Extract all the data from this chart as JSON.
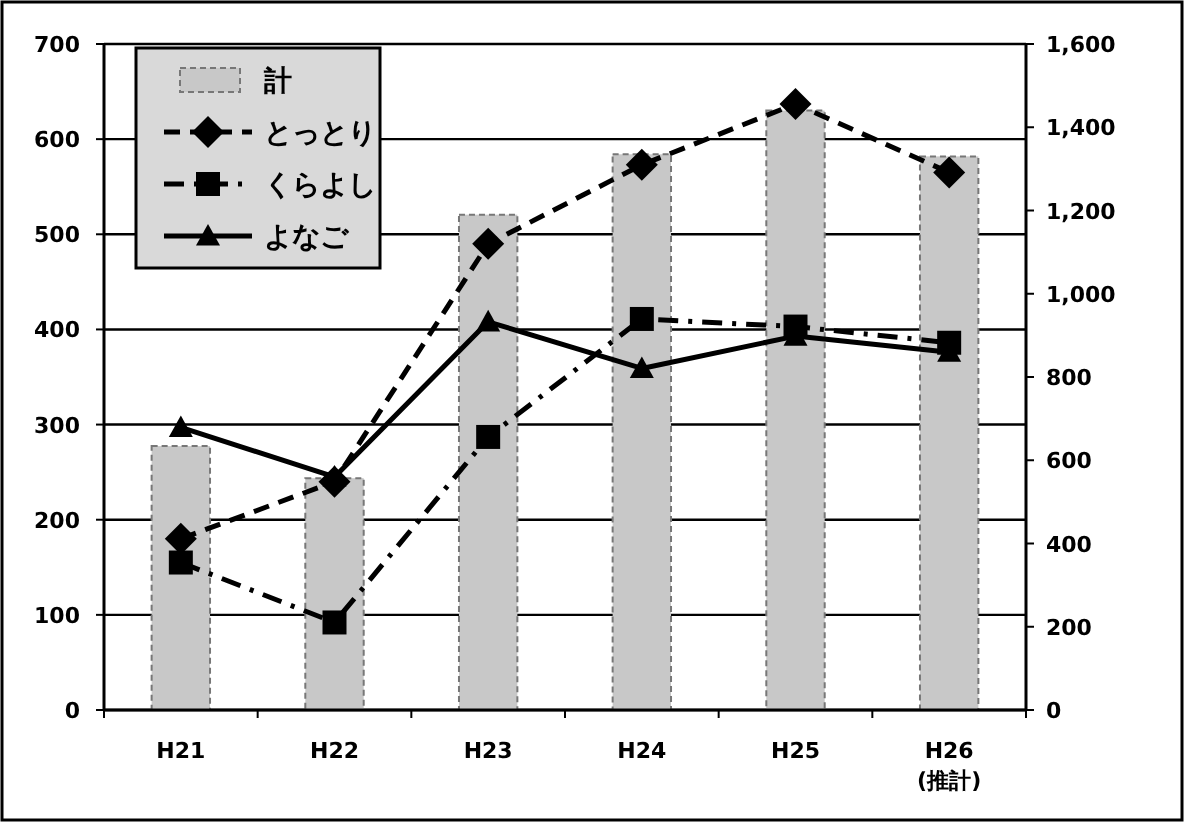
{
  "chart_data": {
    "type": "line",
    "categories": [
      "H21",
      "H22",
      "H23",
      "H24",
      "H25",
      "H26\n(推計)"
    ],
    "series": [
      {
        "name": "計",
        "type": "bar",
        "axis": "y2",
        "color": "#c8c8c8",
        "values": [
          634,
          557,
          1190,
          1335,
          1440,
          1330
        ]
      },
      {
        "name": "とっとり",
        "color": "#000000",
        "marker": "diamond",
        "line_style": "dashed",
        "values": [
          180,
          240,
          490,
          573,
          637,
          565
        ]
      },
      {
        "name": "くらよし",
        "color": "#000000",
        "marker": "square",
        "line_style": "dashdot",
        "values": [
          155,
          92,
          287,
          411,
          403,
          386
        ]
      },
      {
        "name": "よなご",
        "color": "#000000",
        "marker": "triangle",
        "line_style": "solid",
        "values": [
          297,
          245,
          408,
          359,
          393,
          376
        ]
      }
    ],
    "ylim": [
      0,
      700
    ],
    "yticks": [
      0,
      100,
      200,
      300,
      400,
      500,
      600,
      700
    ],
    "y2lim": [
      0,
      1600
    ],
    "y2ticks": [
      {
        "value": 0,
        "label": "0"
      },
      {
        "value": 200,
        "label": "200"
      },
      {
        "value": 400,
        "label": "400"
      },
      {
        "value": 600,
        "label": "600"
      },
      {
        "value": 800,
        "label": "800"
      },
      {
        "value": 1000,
        "label": "1,000"
      },
      {
        "value": 1200,
        "label": "1,200"
      },
      {
        "value": 1400,
        "label": "1,400"
      },
      {
        "value": 1600,
        "label": "1,600"
      }
    ],
    "grid": "y",
    "legend": "top left"
  }
}
